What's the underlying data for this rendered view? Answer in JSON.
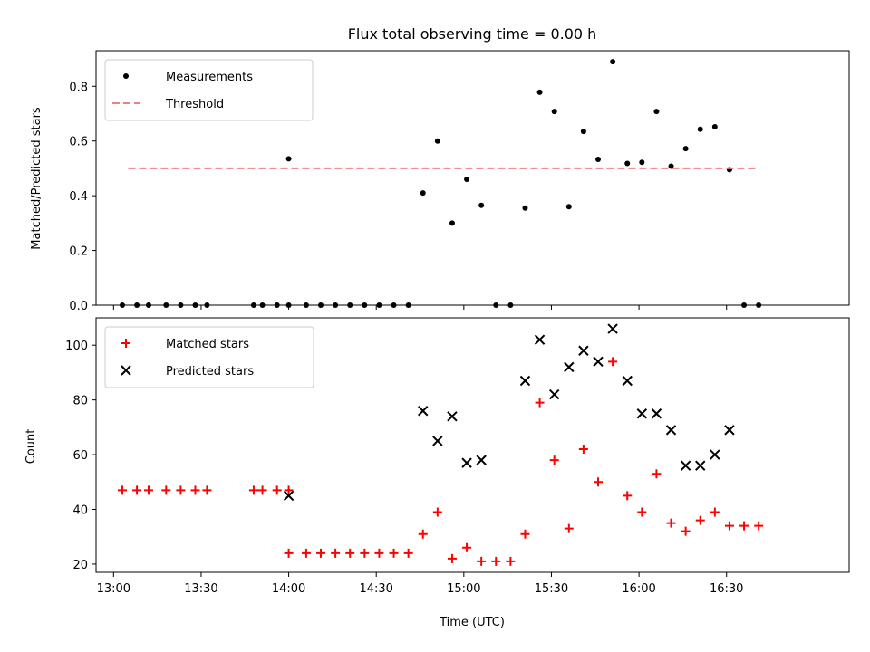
{
  "title": "Flux total observing time = 0.00 h",
  "xlabel": "Time (UTC)",
  "x_ticks": [
    "13:00",
    "13:30",
    "14:00",
    "14:30",
    "15:00",
    "15:30",
    "16:00",
    "16:30"
  ],
  "colors": {
    "measurements": "#000000",
    "threshold": "#f08080",
    "matched": "#ff0000",
    "predicted": "#000000"
  },
  "chart_data": [
    {
      "type": "scatter",
      "ylabel": "Matched/Predicted stars",
      "ylim": [
        0,
        0.93
      ],
      "y_ticks": [
        "0.0",
        "0.2",
        "0.4",
        "0.6",
        "0.8"
      ],
      "xlim": [
        "12:54",
        "17:12"
      ],
      "legend_position": "top-left",
      "series": [
        {
          "name": "Measurements",
          "marker": "dot",
          "points": [
            [
              "13:03",
              0
            ],
            [
              "13:08",
              0
            ],
            [
              "13:12",
              0
            ],
            [
              "13:18",
              0
            ],
            [
              "13:23",
              0
            ],
            [
              "13:28",
              0
            ],
            [
              "13:32",
              0
            ],
            [
              "13:48",
              0
            ],
            [
              "13:51",
              0
            ],
            [
              "13:56",
              0
            ],
            [
              "14:00",
              0
            ],
            [
              "14:00",
              0.535
            ],
            [
              "14:06",
              0
            ],
            [
              "14:11",
              0
            ],
            [
              "14:16",
              0
            ],
            [
              "14:21",
              0
            ],
            [
              "14:26",
              0
            ],
            [
              "14:31",
              0
            ],
            [
              "14:36",
              0
            ],
            [
              "14:41",
              0
            ],
            [
              "14:46",
              0.41
            ],
            [
              "14:51",
              0.6
            ],
            [
              "14:56",
              0.3
            ],
            [
              "15:01",
              0.46
            ],
            [
              "15:06",
              0.365
            ],
            [
              "15:11",
              0
            ],
            [
              "15:16",
              0
            ],
            [
              "15:21",
              0.355
            ],
            [
              "15:26",
              0.778
            ],
            [
              "15:31",
              0.708
            ],
            [
              "15:36",
              0.36
            ],
            [
              "15:41",
              0.635
            ],
            [
              "15:46",
              0.533
            ],
            [
              "15:51",
              0.89
            ],
            [
              "15:56",
              0.518
            ],
            [
              "16:01",
              0.522
            ],
            [
              "16:06",
              0.708
            ],
            [
              "16:11",
              0.508
            ],
            [
              "16:16",
              0.572
            ],
            [
              "16:21",
              0.643
            ],
            [
              "16:26",
              0.652
            ],
            [
              "16:31",
              0.495
            ],
            [
              "16:36",
              0
            ],
            [
              "16:41",
              0
            ]
          ]
        },
        {
          "name": "Threshold",
          "style": "dashed",
          "points": [
            [
              "13:05",
              0.5
            ],
            [
              "16:41",
              0.5
            ]
          ]
        }
      ]
    },
    {
      "type": "scatter",
      "ylabel": "Count",
      "ylim": [
        17,
        110
      ],
      "y_ticks": [
        "20",
        "40",
        "60",
        "80",
        "100"
      ],
      "xlim": [
        "12:54",
        "17:12"
      ],
      "legend_position": "top-left",
      "series": [
        {
          "name": "Matched stars",
          "marker": "plus",
          "points": [
            [
              "13:03",
              47
            ],
            [
              "13:08",
              47
            ],
            [
              "13:12",
              47
            ],
            [
              "13:18",
              47
            ],
            [
              "13:23",
              47
            ],
            [
              "13:28",
              47
            ],
            [
              "13:32",
              47
            ],
            [
              "13:48",
              47
            ],
            [
              "13:51",
              47
            ],
            [
              "13:56",
              47
            ],
            [
              "14:00",
              47
            ],
            [
              "14:00",
              24
            ],
            [
              "14:06",
              24
            ],
            [
              "14:11",
              24
            ],
            [
              "14:16",
              24
            ],
            [
              "14:21",
              24
            ],
            [
              "14:26",
              24
            ],
            [
              "14:31",
              24
            ],
            [
              "14:36",
              24
            ],
            [
              "14:41",
              24
            ],
            [
              "14:46",
              31
            ],
            [
              "14:51",
              39
            ],
            [
              "14:56",
              22
            ],
            [
              "15:01",
              26
            ],
            [
              "15:06",
              21
            ],
            [
              "15:11",
              21
            ],
            [
              "15:16",
              21
            ],
            [
              "15:21",
              31
            ],
            [
              "15:26",
              79
            ],
            [
              "15:31",
              58
            ],
            [
              "15:36",
              33
            ],
            [
              "15:41",
              62
            ],
            [
              "15:46",
              50
            ],
            [
              "15:51",
              94
            ],
            [
              "15:56",
              45
            ],
            [
              "16:01",
              39
            ],
            [
              "16:06",
              53
            ],
            [
              "16:11",
              35
            ],
            [
              "16:16",
              32
            ],
            [
              "16:21",
              36
            ],
            [
              "16:26",
              39
            ],
            [
              "16:31",
              34
            ],
            [
              "16:36",
              34
            ],
            [
              "16:41",
              34
            ]
          ]
        },
        {
          "name": "Predicted stars",
          "marker": "x",
          "points": [
            [
              "14:00",
              45
            ],
            [
              "14:46",
              76
            ],
            [
              "14:51",
              65
            ],
            [
              "14:56",
              74
            ],
            [
              "15:01",
              57
            ],
            [
              "15:06",
              58
            ],
            [
              "15:21",
              87
            ],
            [
              "15:26",
              102
            ],
            [
              "15:31",
              82
            ],
            [
              "15:36",
              92
            ],
            [
              "15:41",
              98
            ],
            [
              "15:46",
              94
            ],
            [
              "15:51",
              106
            ],
            [
              "15:56",
              87
            ],
            [
              "16:01",
              75
            ],
            [
              "16:06",
              75
            ],
            [
              "16:11",
              69
            ],
            [
              "16:16",
              56
            ],
            [
              "16:21",
              56
            ],
            [
              "16:26",
              60
            ],
            [
              "16:31",
              69
            ]
          ]
        }
      ]
    }
  ]
}
